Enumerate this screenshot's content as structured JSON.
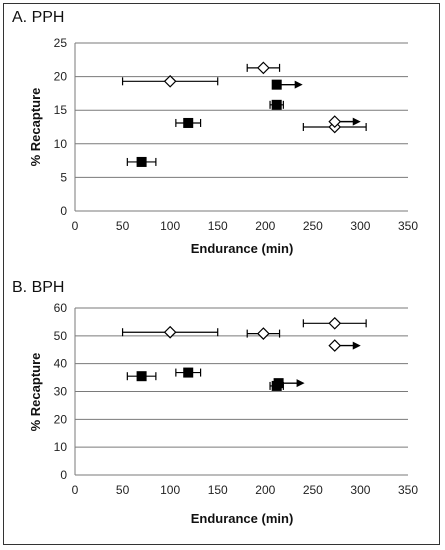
{
  "chart_data": [
    {
      "panel_title": "A. PPH",
      "type": "scatter",
      "xlabel": "Endurance (min)",
      "ylabel": "% Recapture",
      "xlim": [
        0,
        350
      ],
      "ylim": [
        0,
        25
      ],
      "xticks": [
        "0",
        "50",
        "100",
        "150",
        "200",
        "250",
        "300",
        "350"
      ],
      "yticks": [
        "0",
        "5",
        "10",
        "15",
        "20",
        "25"
      ],
      "grid": "horizontal",
      "series": [
        {
          "marker": "square-filled",
          "points": [
            {
              "x": 70,
              "y": 7.3,
              "xerr": 15,
              "arrow": false
            },
            {
              "x": 119,
              "y": 13.1,
              "xerr": 13,
              "arrow": false
            },
            {
              "x": 212,
              "y": 15.8,
              "xerr": 7,
              "arrow": false
            },
            {
              "x": 212,
              "y": 18.8,
              "xerr": 0,
              "arrow": true
            }
          ]
        },
        {
          "marker": "diamond-open",
          "points": [
            {
              "x": 100,
              "y": 19.3,
              "xerr": 50,
              "arrow": false
            },
            {
              "x": 198,
              "y": 21.3,
              "xerr": 17,
              "arrow": false
            },
            {
              "x": 273,
              "y": 12.5,
              "xerr": 33,
              "arrow": false
            },
            {
              "x": 273,
              "y": 13.3,
              "xerr": 0,
              "arrow": true
            }
          ]
        }
      ]
    },
    {
      "panel_title": "B. BPH",
      "type": "scatter",
      "xlabel": "Endurance (min)",
      "ylabel": "% Recapture",
      "xlim": [
        0,
        350
      ],
      "ylim": [
        0,
        60
      ],
      "xticks": [
        "0",
        "50",
        "100",
        "150",
        "200",
        "250",
        "300",
        "350"
      ],
      "yticks": [
        "0",
        "10",
        "20",
        "30",
        "40",
        "50",
        "60"
      ],
      "grid": "horizontal",
      "series": [
        {
          "marker": "square-filled",
          "points": [
            {
              "x": 70,
              "y": 35.5,
              "xerr": 15,
              "arrow": false
            },
            {
              "x": 119,
              "y": 36.8,
              "xerr": 13,
              "arrow": false
            },
            {
              "x": 212,
              "y": 32.0,
              "xerr": 7,
              "arrow": false
            },
            {
              "x": 214,
              "y": 33.0,
              "xerr": 0,
              "arrow": true
            }
          ]
        },
        {
          "marker": "diamond-open",
          "points": [
            {
              "x": 100,
              "y": 51.3,
              "xerr": 50,
              "arrow": false
            },
            {
              "x": 198,
              "y": 50.8,
              "xerr": 17,
              "arrow": false
            },
            {
              "x": 273,
              "y": 54.5,
              "xerr": 33,
              "arrow": false
            },
            {
              "x": 273,
              "y": 46.5,
              "xerr": 0,
              "arrow": true
            }
          ]
        }
      ]
    }
  ]
}
